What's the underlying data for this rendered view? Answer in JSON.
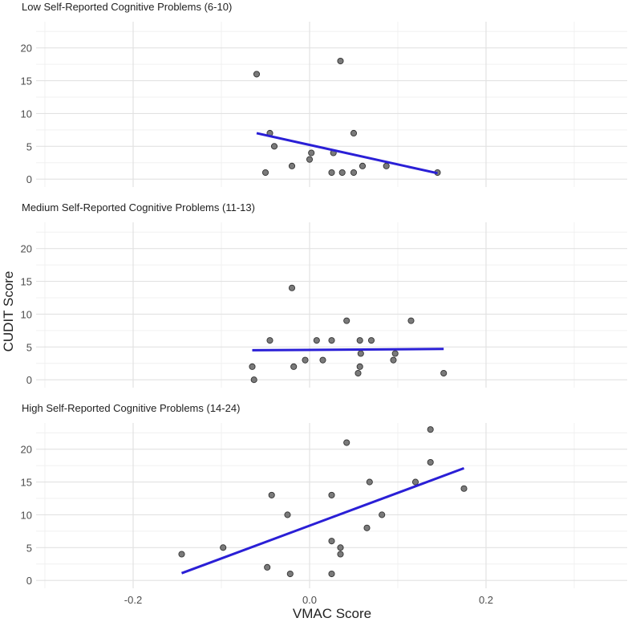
{
  "chart_data": {
    "type": "scatter",
    "xlabel": "VMAC Score",
    "ylabel": "CUDIT Score",
    "xlim": [
      -0.31,
      0.36
    ],
    "x_ticks": [
      -0.2,
      0.0,
      0.2
    ],
    "x_tick_labels": [
      "-0.2",
      "0.0",
      "0.2"
    ],
    "y_ticks": [
      0,
      5,
      10,
      15,
      20
    ],
    "y_tick_labels": [
      "0",
      "5",
      "10",
      "15",
      "20"
    ],
    "ylim": [
      -1.2,
      24.0
    ],
    "grid": true,
    "point_color": "#6b6b6b",
    "line_color": "#2a1fd6",
    "panels": [
      {
        "title": "Low Self-Reported Cognitive Problems (6-10)",
        "points": [
          {
            "x": -0.06,
            "y": 16
          },
          {
            "x": 0.035,
            "y": 18
          },
          {
            "x": -0.045,
            "y": 7
          },
          {
            "x": 0.05,
            "y": 7
          },
          {
            "x": -0.04,
            "y": 5
          },
          {
            "x": 0.002,
            "y": 4
          },
          {
            "x": 0.027,
            "y": 4
          },
          {
            "x": 0.0,
            "y": 3
          },
          {
            "x": -0.02,
            "y": 2
          },
          {
            "x": 0.06,
            "y": 2
          },
          {
            "x": 0.087,
            "y": 2
          },
          {
            "x": -0.05,
            "y": 1
          },
          {
            "x": 0.025,
            "y": 1
          },
          {
            "x": 0.037,
            "y": 1
          },
          {
            "x": 0.05,
            "y": 1
          },
          {
            "x": 0.145,
            "y": 1
          }
        ],
        "fit": {
          "x": [
            -0.06,
            0.145
          ],
          "y": [
            7.0,
            0.9
          ]
        }
      },
      {
        "title": "Medium Self-Reported Cognitive Problems (11-13)",
        "points": [
          {
            "x": -0.02,
            "y": 14
          },
          {
            "x": 0.042,
            "y": 9
          },
          {
            "x": 0.115,
            "y": 9
          },
          {
            "x": -0.045,
            "y": 6
          },
          {
            "x": 0.008,
            "y": 6
          },
          {
            "x": 0.025,
            "y": 6
          },
          {
            "x": 0.057,
            "y": 6
          },
          {
            "x": 0.07,
            "y": 6
          },
          {
            "x": 0.058,
            "y": 4
          },
          {
            "x": 0.097,
            "y": 4
          },
          {
            "x": -0.005,
            "y": 3
          },
          {
            "x": 0.015,
            "y": 3
          },
          {
            "x": 0.095,
            "y": 3
          },
          {
            "x": -0.065,
            "y": 2
          },
          {
            "x": -0.018,
            "y": 2
          },
          {
            "x": 0.057,
            "y": 2
          },
          {
            "x": 0.055,
            "y": 1
          },
          {
            "x": 0.152,
            "y": 1
          },
          {
            "x": -0.063,
            "y": 0
          }
        ],
        "fit": {
          "x": [
            -0.065,
            0.152
          ],
          "y": [
            4.5,
            4.7
          ]
        }
      },
      {
        "title": "High Self-Reported Cognitive Problems (14-24)",
        "points": [
          {
            "x": 0.137,
            "y": 23
          },
          {
            "x": 0.042,
            "y": 21
          },
          {
            "x": 0.137,
            "y": 18
          },
          {
            "x": 0.068,
            "y": 15
          },
          {
            "x": 0.12,
            "y": 15
          },
          {
            "x": 0.175,
            "y": 14
          },
          {
            "x": -0.043,
            "y": 13
          },
          {
            "x": 0.025,
            "y": 13
          },
          {
            "x": -0.025,
            "y": 10
          },
          {
            "x": 0.082,
            "y": 10
          },
          {
            "x": 0.065,
            "y": 8
          },
          {
            "x": 0.025,
            "y": 6
          },
          {
            "x": -0.098,
            "y": 5
          },
          {
            "x": 0.035,
            "y": 5
          },
          {
            "x": -0.145,
            "y": 4
          },
          {
            "x": 0.035,
            "y": 4
          },
          {
            "x": -0.048,
            "y": 2
          },
          {
            "x": -0.022,
            "y": 1
          },
          {
            "x": 0.025,
            "y": 1
          }
        ],
        "fit": {
          "x": [
            -0.145,
            0.175
          ],
          "y": [
            1.1,
            17.1
          ]
        }
      }
    ]
  }
}
